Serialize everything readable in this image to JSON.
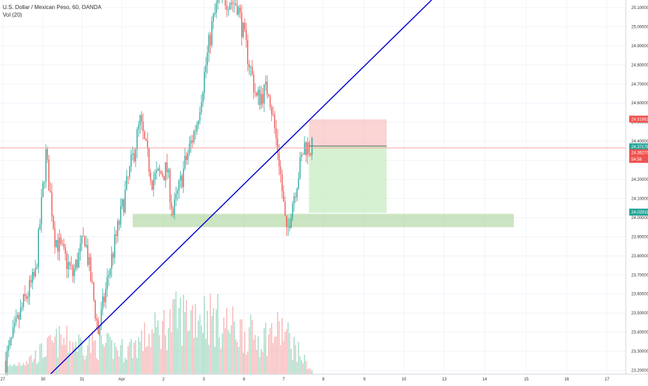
{
  "header": {
    "symbol_line": "U.S. Dollar / Mexican Peso, 60, OANDA",
    "volume_line": "Vol (20)"
  },
  "colors": {
    "up": "#26a69a",
    "down": "#ef5350",
    "up_volume": "#9fd9c2",
    "down_volume": "#f7b3b3",
    "trendline": "#0000cc",
    "support_zone": "#a8d49a",
    "stop_zone": "#f8b8b8",
    "target_zone": "#c8ecc2",
    "current_price_line": "#f4a0a0",
    "grid": "#f0f3fa"
  },
  "chart_data": {
    "type": "candlestick",
    "symbol": "USD/MXN",
    "timeframe": "60",
    "x_tick_labels": [
      "27",
      "30",
      "31",
      "Apr",
      "2",
      "3",
      "6",
      "7",
      "8",
      "9",
      "10",
      "13",
      "14",
      "15",
      "16",
      "17"
    ],
    "y_tick_labels": [
      "25.10000",
      "25.00000",
      "24.90000",
      "24.80000",
      "24.70000",
      "24.60000",
      "24.50000",
      "24.40000",
      "24.30000",
      "24.20000",
      "24.10000",
      "24.00000",
      "23.90000",
      "23.80000",
      "23.70000",
      "23.60000",
      "23.50000",
      "23.40000",
      "23.30000",
      "23.20000"
    ],
    "ylim": [
      23.18,
      25.14
    ],
    "price_path": [
      {
        "bar": 0,
        "close": 23.25
      },
      {
        "bar": 12,
        "close": 23.55
      },
      {
        "bar": 20,
        "close": 23.7
      },
      {
        "bar": 27,
        "close": 24.33
      },
      {
        "bar": 33,
        "close": 23.9
      },
      {
        "bar": 45,
        "close": 23.7
      },
      {
        "bar": 53,
        "close": 23.9
      },
      {
        "bar": 62,
        "close": 23.4
      },
      {
        "bar": 70,
        "close": 23.75
      },
      {
        "bar": 82,
        "close": 24.2
      },
      {
        "bar": 90,
        "close": 24.5
      },
      {
        "bar": 98,
        "close": 24.2
      },
      {
        "bar": 108,
        "close": 24.25
      },
      {
        "bar": 112,
        "close": 24.02
      },
      {
        "bar": 120,
        "close": 24.28
      },
      {
        "bar": 128,
        "close": 24.5
      },
      {
        "bar": 138,
        "close": 25.0
      },
      {
        "bar": 143,
        "close": 25.16
      },
      {
        "bar": 155,
        "close": 25.12
      },
      {
        "bar": 168,
        "close": 24.62
      },
      {
        "bar": 176,
        "close": 24.68
      },
      {
        "bar": 183,
        "close": 24.3
      },
      {
        "bar": 188,
        "close": 23.9
      },
      {
        "bar": 191,
        "close": 24.05
      },
      {
        "bar": 200,
        "close": 24.38
      },
      {
        "bar": 205,
        "close": 24.36
      }
    ],
    "volume_profile": [
      {
        "bar": 0,
        "volume": 10
      },
      {
        "bar": 20,
        "volume": 30
      },
      {
        "bar": 35,
        "volume": 55
      },
      {
        "bar": 60,
        "volume": 50
      },
      {
        "bar": 80,
        "volume": 40
      },
      {
        "bar": 100,
        "volume": 70
      },
      {
        "bar": 115,
        "volume": 95
      },
      {
        "bar": 130,
        "volume": 105
      },
      {
        "bar": 150,
        "volume": 80
      },
      {
        "bar": 170,
        "volume": 60
      },
      {
        "bar": 185,
        "volume": 75
      },
      {
        "bar": 205,
        "volume": 5
      }
    ],
    "trendline": {
      "from": {
        "bar": 30,
        "price": 23.18
      },
      "to": {
        "bar": 285,
        "price": 25.14
      }
    },
    "support_zone": {
      "from_bar": 85,
      "to_bar": 340,
      "top": 24.02,
      "bottom": 23.95
    },
    "position": {
      "from_bar": 203,
      "to_bar": 255,
      "stop": 24.515,
      "entry": 24.375,
      "target": 24.025
    },
    "current_price": 24.365,
    "price_labels": [
      {
        "text": "24.51663",
        "price": 24.516,
        "color": "#ef5350"
      },
      {
        "text": "24.37178",
        "price": 24.371,
        "color": "#26a69a"
      },
      {
        "text": "24.36270",
        "price": 24.34,
        "color": "#ef5350"
      },
      {
        "text": "54:58",
        "price": 24.305,
        "color": "#ef5350"
      },
      {
        "text": "24.02911",
        "price": 24.029,
        "color": "#26a69a"
      }
    ]
  }
}
